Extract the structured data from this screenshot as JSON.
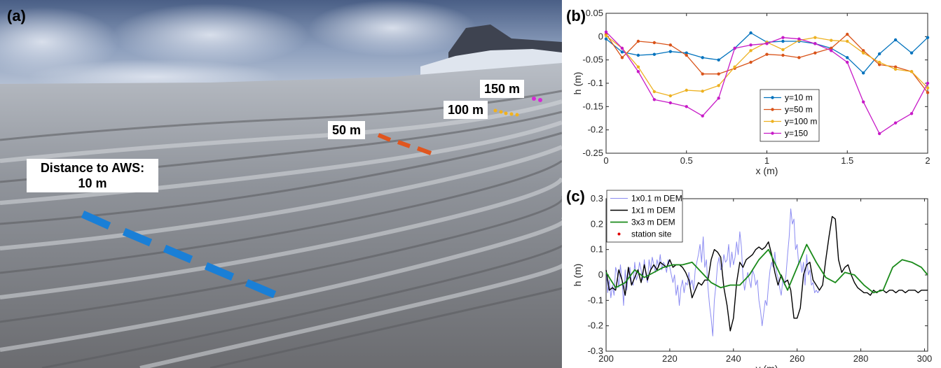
{
  "panels": {
    "a": "(a)",
    "b": "(b)",
    "c": "(c)"
  },
  "photo": {
    "labels": {
      "distance_line1": "Distance to AWS:",
      "distance_line2": "10 m",
      "m50": "50 m",
      "m100": "100 m",
      "m150": "150 m"
    },
    "marker_colors": {
      "10m": "#1a7fd6",
      "50m": "#e0561f",
      "100m": "#f2b21c",
      "150m": "#d62ad6"
    }
  },
  "chart_data": [
    {
      "panel": "(b)",
      "type": "line",
      "title": "",
      "xlabel": "x (m)",
      "ylabel": "h (m)",
      "xlim": [
        0,
        2
      ],
      "ylim": [
        -0.25,
        0.05
      ],
      "xticks": [
        0,
        0.5,
        1,
        1.5,
        2
      ],
      "xtick_labels": [
        "0",
        "0.5",
        "1",
        "1.5",
        "2"
      ],
      "yticks": [
        0.05,
        0,
        -0.05,
        -0.1,
        -0.15,
        -0.2,
        -0.25
      ],
      "ytick_labels": [
        "0.05",
        "0",
        "-0.05",
        "-0.1",
        "-0.15",
        "-0.2",
        "-0.25"
      ],
      "grid": false,
      "legend_position": "center-right",
      "x": [
        0,
        0.1,
        0.2,
        0.3,
        0.4,
        0.5,
        0.6,
        0.7,
        0.8,
        0.9,
        1.0,
        1.1,
        1.2,
        1.3,
        1.4,
        1.5,
        1.6,
        1.7,
        1.8,
        1.9,
        2.0
      ],
      "series": [
        {
          "name": "y=10 m",
          "color": "#0072BD",
          "values": [
            -0.005,
            -0.033,
            -0.04,
            -0.038,
            -0.032,
            -0.035,
            -0.045,
            -0.05,
            -0.025,
            0.008,
            -0.012,
            -0.01,
            -0.01,
            -0.015,
            -0.025,
            -0.045,
            -0.078,
            -0.037,
            -0.007,
            -0.035,
            -0.002
          ]
        },
        {
          "name": "y=50 m",
          "color": "#D95319",
          "values": [
            0.005,
            -0.045,
            -0.01,
            -0.013,
            -0.018,
            -0.04,
            -0.08,
            -0.08,
            -0.068,
            -0.055,
            -0.038,
            -0.04,
            -0.045,
            -0.035,
            -0.025,
            0.005,
            -0.03,
            -0.06,
            -0.065,
            -0.075,
            -0.12
          ]
        },
        {
          "name": "y=100 m",
          "color": "#EDB120",
          "values": [
            0.002,
            -0.025,
            -0.065,
            -0.118,
            -0.127,
            -0.115,
            -0.117,
            -0.105,
            -0.065,
            -0.03,
            -0.012,
            -0.028,
            -0.008,
            -0.002,
            -0.008,
            -0.01,
            -0.035,
            -0.055,
            -0.07,
            -0.075,
            -0.11
          ]
        },
        {
          "name": "y=150",
          "color": "#C71AC7",
          "values": [
            0.01,
            -0.025,
            -0.075,
            -0.135,
            -0.142,
            -0.15,
            -0.17,
            -0.132,
            -0.025,
            -0.018,
            -0.015,
            -0.002,
            -0.005,
            -0.015,
            -0.03,
            -0.055,
            -0.14,
            -0.208,
            -0.185,
            -0.165,
            -0.1
          ]
        }
      ]
    },
    {
      "panel": "(c)",
      "type": "line",
      "title": "",
      "xlabel": "y (m)",
      "ylabel": "h (m)",
      "xlim": [
        200,
        301
      ],
      "ylim": [
        -0.3,
        0.3
      ],
      "xticks": [
        200,
        220,
        240,
        260,
        280,
        300
      ],
      "xtick_labels": [
        "200",
        "220",
        "240",
        "260",
        "280",
        "300"
      ],
      "yticks": [
        0.3,
        0.2,
        0.1,
        0,
        -0.1,
        -0.2,
        -0.3
      ],
      "ytick_labels": [
        "0.3",
        "0.2",
        "0.1",
        "0",
        "-0.1",
        "-0.2",
        "-0.3"
      ],
      "grid": false,
      "legend_position": "top-left",
      "series": [
        {
          "name": "1x0.1 m DEM",
          "color": "#8c8cf2",
          "x_start": 200,
          "x_step": 0.5,
          "values": [
            0.02,
            -0.07,
            -0.02,
            -0.09,
            -0.04,
            -0.08,
            0.03,
            0.01,
            -0.05,
            0.04,
            -0.02,
            -0.12,
            0.02,
            -0.06,
            0.01,
            0.03,
            -0.03,
            -0.04,
            0.05,
            -0.02,
            0.0,
            0.05,
            0.02,
            -0.02,
            0.06,
            0.0,
            -0.03,
            0.06,
            0.02,
            0.07,
            0.04,
            0.01,
            0.06,
            0.03,
            0.08,
            0.02,
            0.05,
            0.04,
            0.01,
            0.06,
            0.03,
            0.0,
            -0.03,
            0.0,
            -0.08,
            -0.04,
            -0.12,
            -0.05,
            -0.02,
            -0.07,
            -0.03,
            -0.04,
            0.01,
            -0.04,
            -0.02,
            -0.06,
            0.02,
            0.05,
            0.08,
            0.12,
            0.05,
            0.15,
            0.03,
            0.06,
            -0.05,
            -0.12,
            -0.17,
            -0.24,
            -0.1,
            -0.04,
            0.04,
            0.07,
            0.02,
            0.03,
            0.08,
            0.05,
            0.06,
            0.12,
            0.03,
            0.09,
            0.04,
            0.07,
            0.13,
            0.08,
            0.17,
            0.11,
            -0.01,
            -0.06,
            -0.02,
            0.01,
            -0.02,
            -0.05,
            0.02,
            0.0,
            -0.04,
            -0.02,
            -0.1,
            -0.14,
            -0.2,
            -0.15,
            -0.1,
            -0.12,
            -0.04,
            0.02,
            0.05,
            0.03,
            0.09,
            0.01,
            -0.01,
            -0.05,
            -0.08,
            -0.02,
            -0.04,
            0.0,
            0.08,
            0.15,
            0.26,
            0.2,
            0.22,
            0.1,
            0.12,
            0.04,
            0.06,
            0.01,
            0.05,
            -0.04,
            0.08,
            0.0,
            0.02,
            -0.04,
            -0.03,
            -0.07,
            -0.06,
            -0.07,
            -0.06
          ]
        },
        {
          "name": "1x1 m DEM",
          "color": "#000000",
          "x": [
            200,
            201,
            202,
            203,
            204,
            205,
            206,
            207,
            208,
            209,
            210,
            211,
            212,
            213,
            214,
            215,
            216,
            217,
            218,
            219,
            220,
            221,
            222,
            223,
            224,
            225,
            226,
            227,
            228,
            229,
            230,
            231,
            232,
            233,
            234,
            235,
            236,
            237,
            238,
            239,
            240,
            241,
            242,
            243,
            244,
            245,
            246,
            247,
            248,
            249,
            250,
            251,
            252,
            253,
            254,
            255,
            256,
            257,
            258,
            259,
            260,
            261,
            262,
            263,
            264,
            265,
            266,
            267,
            268,
            269,
            270,
            271,
            272,
            273,
            274,
            275,
            276,
            277,
            278,
            279,
            280,
            281,
            282,
            283,
            284,
            285,
            286,
            287,
            288,
            289,
            290,
            291,
            292,
            293,
            294,
            295,
            296,
            297,
            298,
            299,
            300,
            301
          ],
          "values": [
            0.02,
            -0.06,
            -0.05,
            -0.06,
            0.02,
            -0.02,
            -0.08,
            0.03,
            -0.04,
            -0.01,
            0.02,
            -0.03,
            0.04,
            -0.02,
            0.02,
            0.04,
            0.02,
            0.05,
            0.04,
            0.03,
            0.06,
            0.03,
            0.04,
            0.04,
            0.03,
            0.01,
            -0.02,
            -0.09,
            -0.06,
            -0.03,
            -0.04,
            -0.02,
            -0.02,
            0.06,
            0.1,
            0.09,
            0.07,
            -0.05,
            -0.12,
            -0.22,
            -0.17,
            -0.03,
            0.05,
            0.03,
            0.06,
            0.07,
            0.08,
            0.1,
            0.11,
            0.1,
            0.11,
            0.13,
            0.08,
            0.01,
            -0.04,
            0.0,
            -0.03,
            -0.02,
            -0.06,
            -0.17,
            -0.17,
            -0.13,
            0.0,
            0.04,
            0.05,
            -0.02,
            -0.04,
            -0.06,
            -0.04,
            0.06,
            0.15,
            0.23,
            0.22,
            0.06,
            0.01,
            0.03,
            0.04,
            0.0,
            -0.03,
            -0.05,
            -0.06,
            -0.07,
            -0.07,
            -0.08,
            -0.06,
            -0.07,
            -0.06,
            -0.06,
            -0.07,
            -0.06,
            -0.06,
            -0.07,
            -0.06,
            -0.06,
            -0.07,
            -0.06,
            -0.06,
            -0.06,
            -0.07,
            -0.06,
            -0.06,
            -0.06
          ]
        },
        {
          "name": "3x3 m DEM",
          "color": "#1a8a1a",
          "x": [
            200,
            203,
            206,
            209,
            212,
            215,
            218,
            221,
            224,
            227,
            230,
            233,
            236,
            239,
            242,
            245,
            248,
            251,
            254,
            257,
            260,
            263,
            266,
            269,
            272,
            275,
            278,
            281,
            284,
            287,
            290,
            293,
            296,
            299,
            301
          ],
          "values": [
            0.01,
            -0.05,
            -0.03,
            0.02,
            -0.01,
            0.01,
            0.03,
            0.04,
            0.04,
            0.05,
            0.01,
            -0.03,
            -0.05,
            -0.04,
            -0.04,
            0.0,
            0.06,
            0.1,
            0.02,
            -0.06,
            0.03,
            0.12,
            0.05,
            -0.01,
            -0.03,
            0.01,
            0.0,
            -0.04,
            -0.07,
            -0.06,
            0.03,
            0.06,
            0.05,
            0.03,
            0.0
          ]
        },
        {
          "name": "station site",
          "color": "#e00000",
          "marker_only": true,
          "x": [
            301
          ],
          "values": [
            -0.06
          ]
        }
      ]
    }
  ]
}
